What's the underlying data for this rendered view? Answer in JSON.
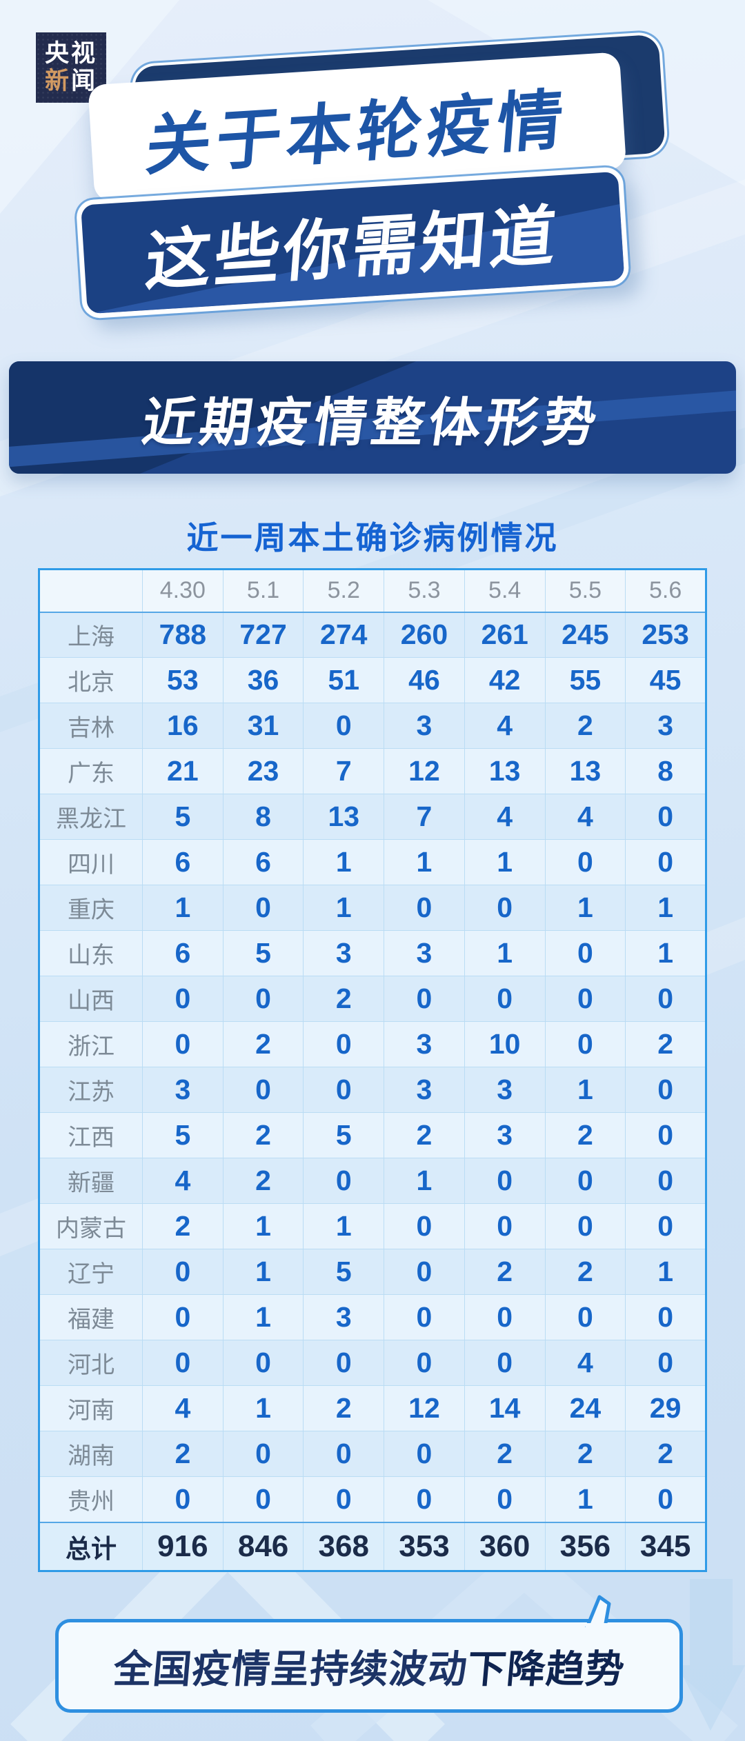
{
  "brand": {
    "line1": "央视",
    "line2_char1": "新",
    "line2_char2": "闻"
  },
  "title": {
    "line1": "关于本轮疫情",
    "line2": "这些你需知道"
  },
  "section": {
    "header": "近期疫情整体形势"
  },
  "chart_data": {
    "type": "table",
    "title": "近一周本土确诊病例情况",
    "columns": [
      "4.30",
      "5.1",
      "5.2",
      "5.3",
      "5.4",
      "5.5",
      "5.6"
    ],
    "row_header_label": "",
    "rows": [
      {
        "label": "上海",
        "values": [
          788,
          727,
          274,
          260,
          261,
          245,
          253
        ]
      },
      {
        "label": "北京",
        "values": [
          53,
          36,
          51,
          46,
          42,
          55,
          45
        ]
      },
      {
        "label": "吉林",
        "values": [
          16,
          31,
          0,
          3,
          4,
          2,
          3
        ]
      },
      {
        "label": "广东",
        "values": [
          21,
          23,
          7,
          12,
          13,
          13,
          8
        ]
      },
      {
        "label": "黑龙江",
        "values": [
          5,
          8,
          13,
          7,
          4,
          4,
          0
        ]
      },
      {
        "label": "四川",
        "values": [
          6,
          6,
          1,
          1,
          1,
          0,
          0
        ]
      },
      {
        "label": "重庆",
        "values": [
          1,
          0,
          1,
          0,
          0,
          1,
          1
        ]
      },
      {
        "label": "山东",
        "values": [
          6,
          5,
          3,
          3,
          1,
          0,
          1
        ]
      },
      {
        "label": "山西",
        "values": [
          0,
          0,
          2,
          0,
          0,
          0,
          0
        ]
      },
      {
        "label": "浙江",
        "values": [
          0,
          2,
          0,
          3,
          10,
          0,
          2
        ]
      },
      {
        "label": "江苏",
        "values": [
          3,
          0,
          0,
          3,
          3,
          1,
          0
        ]
      },
      {
        "label": "江西",
        "values": [
          5,
          2,
          5,
          2,
          3,
          2,
          0
        ]
      },
      {
        "label": "新疆",
        "values": [
          4,
          2,
          0,
          1,
          0,
          0,
          0
        ]
      },
      {
        "label": "内蒙古",
        "values": [
          2,
          1,
          1,
          0,
          0,
          0,
          0
        ]
      },
      {
        "label": "辽宁",
        "values": [
          0,
          1,
          5,
          0,
          2,
          2,
          1
        ]
      },
      {
        "label": "福建",
        "values": [
          0,
          1,
          3,
          0,
          0,
          0,
          0
        ]
      },
      {
        "label": "河北",
        "values": [
          0,
          0,
          0,
          0,
          0,
          4,
          0
        ]
      },
      {
        "label": "河南",
        "values": [
          4,
          1,
          2,
          12,
          14,
          24,
          29
        ]
      },
      {
        "label": "湖南",
        "values": [
          2,
          0,
          0,
          0,
          2,
          2,
          2
        ]
      },
      {
        "label": "贵州",
        "values": [
          0,
          0,
          0,
          0,
          0,
          1,
          0
        ]
      }
    ],
    "total": {
      "label": "总计",
      "values": [
        916,
        846,
        368,
        353,
        360,
        356,
        345
      ]
    }
  },
  "footer": {
    "note_regular": "全国疫情呈持续波动",
    "note_bold": "下降趋势"
  },
  "colors": {
    "brand_navy": "#232c4e",
    "brand_gold": "#d29a62",
    "banner_deep_blue": "#1b4183",
    "banner_text_blue": "#1d55a6",
    "section_blue": "#1d4286",
    "table_border_blue": "#2f9be7",
    "number_blue": "#1766c9",
    "total_navy": "#1b2b49",
    "title_blue": "#1563d2",
    "bubble_border_blue": "#2e8fe0"
  }
}
